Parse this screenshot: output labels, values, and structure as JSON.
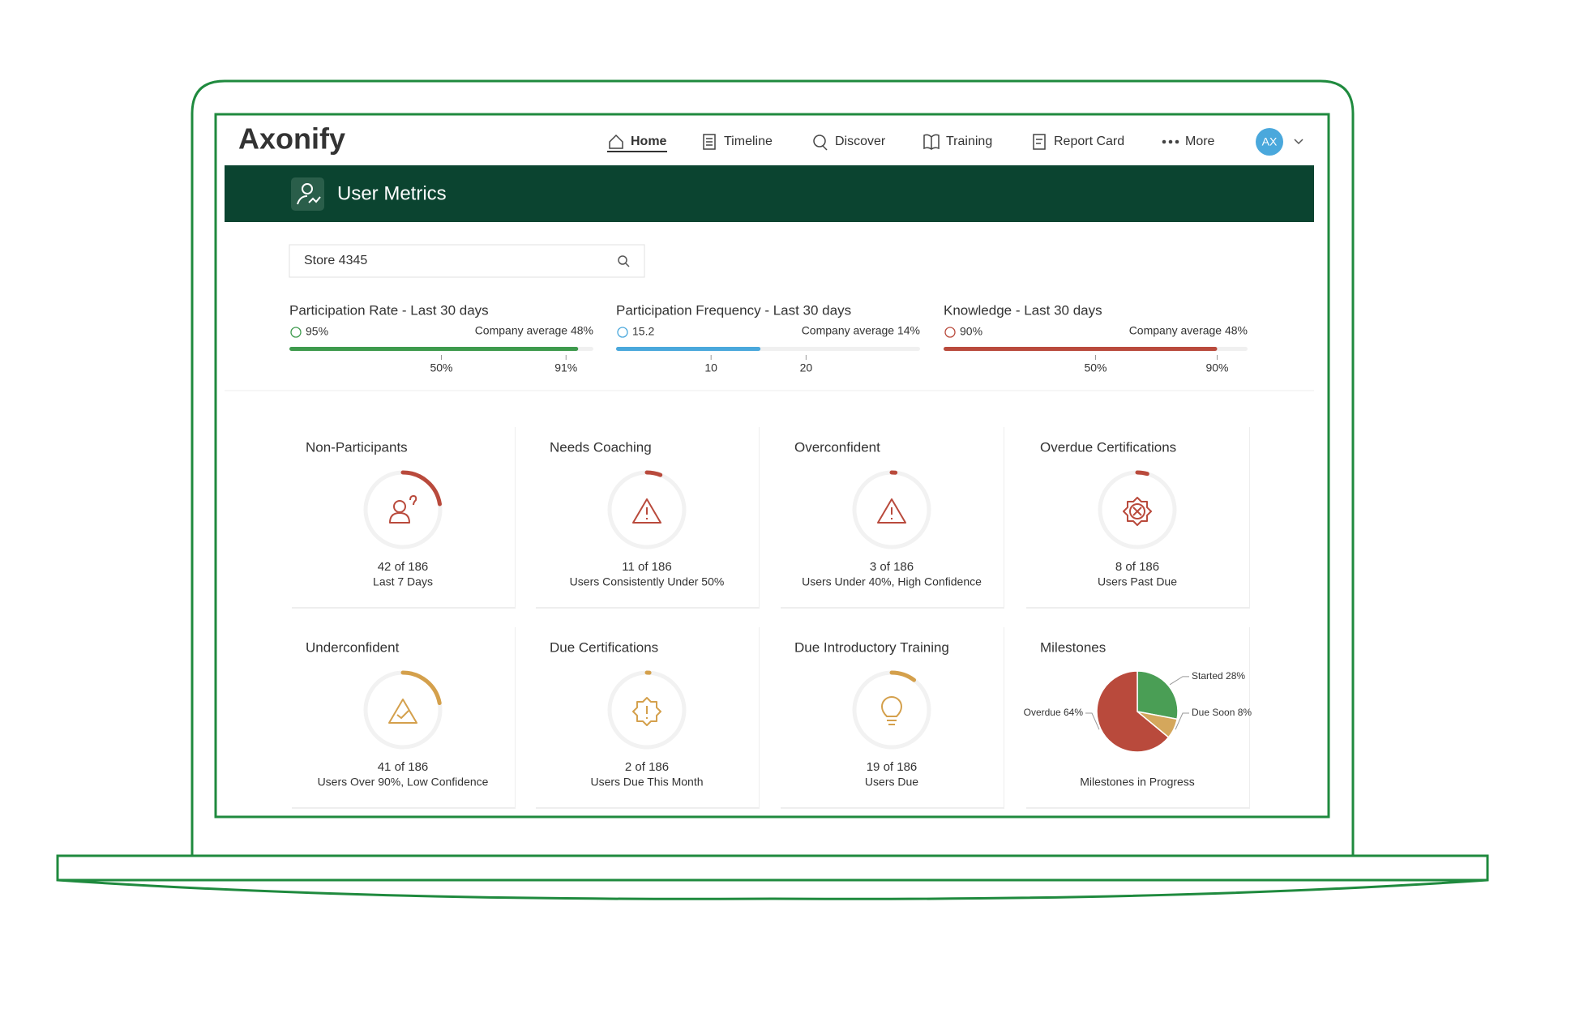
{
  "logo": "Axonify",
  "nav": [
    "Home",
    "Timeline",
    "Discover",
    "Training",
    "Report Card",
    "More"
  ],
  "avatar": "AX",
  "header": {
    "title": "User Metrics"
  },
  "search": "Store 4345",
  "metrics": [
    {
      "title": "Participation Rate - Last 30 days",
      "value": 95,
      "value_label": "95%",
      "average": "Company average 48%",
      "color": "#3e9a4d",
      "xlim": [
        0,
        100
      ],
      "ticks": [
        {
          "value": 50,
          "label": "50%"
        },
        {
          "value": 91,
          "label": "91%"
        }
      ]
    },
    {
      "title": "Participation Frequency - Last 30 days",
      "value": 15.2,
      "average": "Company average 14%",
      "color": "#4aa8dc",
      "xlim": [
        0,
        32
      ],
      "ticks": [
        10,
        20
      ]
    },
    {
      "title": "Knowledge - Last 30 days",
      "value": 90,
      "value_label": "90%",
      "average": "Company average 48%",
      "color": "#b94a3c",
      "xlim": [
        0,
        100
      ],
      "ticks": [
        {
          "value": 50,
          "label": "50%"
        },
        {
          "value": 90,
          "label": "90%"
        }
      ]
    }
  ],
  "cards": [
    {
      "title": "Non-Participants",
      "count": 42,
      "total": 186,
      "count_label": "42 of 186",
      "subtitle": "Last 7 Days",
      "color": "#b94a3c"
    },
    {
      "title": "Needs Coaching",
      "count": 11,
      "total": 186,
      "count_label": "11 of 186",
      "subtitle": "Users Consistently Under 50%",
      "color": "#b94a3c"
    },
    {
      "title": "Overconfident",
      "count": 3,
      "total": 186,
      "count_label": "3 of 186",
      "subtitle": "Users Under 40%, High Confidence",
      "color": "#b94a3c"
    },
    {
      "title": "Overdue Certifications",
      "count": 8,
      "total": 186,
      "count_label": "8 of 186",
      "subtitle": "Users Past Due",
      "color": "#b94a3c"
    },
    {
      "title": "Underconfident",
      "count": 41,
      "total": 186,
      "count_label": "41 of 186",
      "subtitle": "Users Over 90%, Low Confidence",
      "color": "#d4a04c"
    },
    {
      "title": "Due Certifications",
      "count": 2,
      "total": 186,
      "count_label": "2 of 186",
      "subtitle": "Users Due This Month",
      "color": "#d4a04c"
    },
    {
      "title": "Due Introductory Training",
      "count": 19,
      "total": 186,
      "count_label": "19 of 186",
      "subtitle": "Users Due",
      "color": "#d4a04c"
    }
  ],
  "milestones": {
    "title": "Milestones",
    "subtitle": "Milestones in Progress",
    "slices": [
      {
        "value": 28,
        "label": "Started 28%",
        "color": "#4a9e55"
      },
      {
        "value": 8,
        "label": "Due Soon 8%",
        "color": "#d4a75c"
      },
      {
        "value": 64,
        "label": "Overdue 64%",
        "color": "#b94a3c"
      }
    ]
  }
}
